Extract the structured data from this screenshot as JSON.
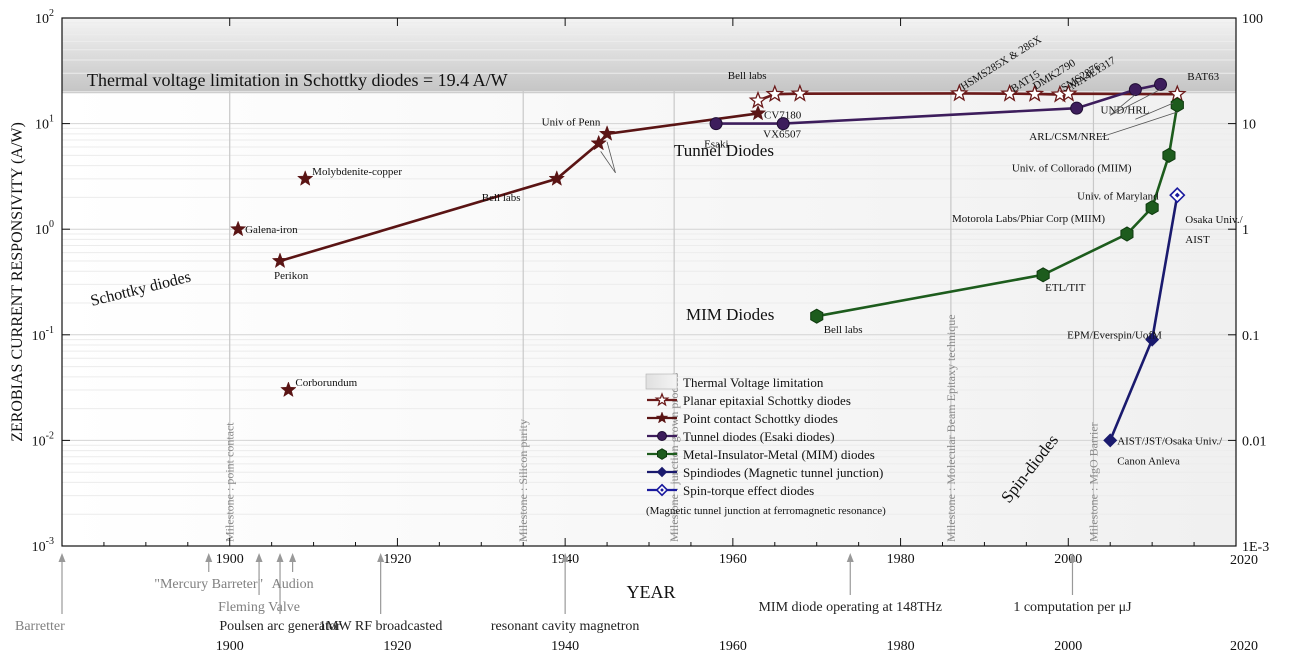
{
  "chart_data": {
    "type": "scatter",
    "ylabel": "ZEROBIAS CURRENT RESPONSIVITY (A/W)",
    "xlabel": "YEAR",
    "xlim": [
      1880,
      2020
    ],
    "ylim": [
      0.001,
      100
    ],
    "y_scale": "log",
    "x_ticks": [
      1900,
      1920,
      1940,
      1960,
      1980,
      2000,
      2020
    ],
    "y_ticks_left": [
      "10^-3",
      "10^-2",
      "10^-1",
      "10^0",
      "10^1",
      "10^2"
    ],
    "y_ticks_right": [
      "1E-3",
      "0.01",
      "0.1",
      "1",
      "10",
      "100"
    ],
    "thermal_band": {
      "from": 19.4,
      "to": 100,
      "label": "Thermal voltage limitation in Schottky diodes = 19.4 A/W"
    },
    "series": [
      {
        "name": "Planar epitaxial Schottky diodes",
        "color": "#6b1a1a",
        "marker": "star-open",
        "points": [
          {
            "x": 1963.0,
            "y": 16.5,
            "label": ""
          },
          {
            "x": 1965.0,
            "y": 19.0,
            "label": "Bell labs"
          },
          {
            "x": 1968.0,
            "y": 19.2,
            "label": ""
          },
          {
            "x": 1987.0,
            "y": 19.3,
            "label": "HSMS285X & 286X"
          },
          {
            "x": 1993.0,
            "y": 19.2,
            "label": "BAT15"
          },
          {
            "x": 1996.0,
            "y": 19.1,
            "label": "DMK2790"
          },
          {
            "x": 1999.0,
            "y": 18.8,
            "label": "SMS2876"
          },
          {
            "x": 2000.0,
            "y": 19.2,
            "label": "MA4E1317"
          },
          {
            "x": 2013.0,
            "y": 19.0,
            "label": "BAT63"
          }
        ]
      },
      {
        "name": "Point contact Schottky diodes",
        "color": "#5a1414",
        "marker": "star",
        "points": [
          {
            "x": 1906.0,
            "y": 0.5,
            "label": "Perikon"
          },
          {
            "x": 1939.0,
            "y": 3.0,
            "label": "Bell labs"
          },
          {
            "x": 1944.0,
            "y": 6.5,
            "label": "Univ of Penn"
          },
          {
            "x": 1945.0,
            "y": 8.0,
            "label": ""
          },
          {
            "x": 1963.0,
            "y": 12.5,
            "label": "CV7180"
          }
        ]
      },
      {
        "name": "",
        "color": "#5a1414",
        "marker": "star",
        "line": false,
        "points": [
          {
            "x": 1901.0,
            "y": 1.0,
            "label": "Galena-iron"
          },
          {
            "x": 1909.0,
            "y": 3.0,
            "label": "Molybdenite-copper"
          },
          {
            "x": 1907.0,
            "y": 0.03,
            "label": "Corborundum"
          }
        ]
      },
      {
        "name": "Tunnel diodes (Esaki diodes)",
        "color": "#3d1d5c",
        "marker": "circle",
        "points": [
          {
            "x": 1958.0,
            "y": 10.0,
            "label": "Esaki"
          },
          {
            "x": 1966.0,
            "y": 10.0,
            "label": "VX6507"
          },
          {
            "x": 2001.0,
            "y": 14.0,
            "label": ""
          },
          {
            "x": 2008.0,
            "y": 21.0,
            "label": ""
          },
          {
            "x": 2011.0,
            "y": 23.5,
            "label": "UND/HRL"
          }
        ]
      },
      {
        "name": "Metal-Insulator-Metal (MIM) diodes",
        "color": "#1d5c1d",
        "marker": "hexagon",
        "points": [
          {
            "x": 1970.0,
            "y": 0.15,
            "label": "Bell labs"
          },
          {
            "x": 1997.0,
            "y": 0.37,
            "label": "ETL/TIT"
          },
          {
            "x": 2007.0,
            "y": 0.9,
            "label": "Motorola Labs/Phiar Corp (MIIM)"
          },
          {
            "x": 2010.0,
            "y": 1.6,
            "label": "Univ. of Maryland"
          },
          {
            "x": 2012.0,
            "y": 5.0,
            "label": "Univ. of Collorado (MIIM)"
          },
          {
            "x": 2013.0,
            "y": 15.0,
            "label": "ARL/CSM/NREL"
          }
        ]
      },
      {
        "name": "Spindiodes (Magnetic tunnel junction)",
        "color": "#1a1a6e",
        "marker": "diamond",
        "points": [
          {
            "x": 2005.0,
            "y": 0.01,
            "label": "AIST/JST/Osaka Univ./ Canon Anleva"
          },
          {
            "x": 2010.0,
            "y": 0.09,
            "label": "EPM/Everspin/UofM"
          }
        ]
      },
      {
        "name": "Spin-torque effect diodes",
        "color": "#1a1a9e",
        "marker": "diamond-open",
        "points": [
          {
            "x": 2013.0,
            "y": 2.1,
            "label": "Osaka Univ./ AIST"
          }
        ]
      }
    ],
    "milestones": [
      {
        "x": 1900,
        "text": "Milestone : point contact"
      },
      {
        "x": 1935,
        "text": "Milestone : Silicon purity"
      },
      {
        "x": 1953,
        "text": "Milestone : junction grown process"
      },
      {
        "x": 1986,
        "text": "Milestone : Molecular Beam Epitaxy technique"
      },
      {
        "x": 2003,
        "text": "Milestone : MgO Barrier"
      }
    ],
    "region_labels": {
      "schottky": "Schottky diodes",
      "tunnel": "Tunnel Diodes",
      "mim": "MIM Diodes",
      "spin": "Spin-diodes"
    },
    "legend": {
      "title": "Thermal Voltage limitation",
      "note": "(Magnetic tunnel junction at ferromagnetic resonance)",
      "placement": "bottom-center"
    },
    "timeline": {
      "ticks": [
        1900,
        1920,
        1940,
        1960,
        1980,
        2000,
        2020
      ],
      "events": [
        {
          "x": 1880.0,
          "text": "Barretter",
          "color": "#808080",
          "row": 3
        },
        {
          "x": 1897.5,
          "text": "\"Mercury Barreter\"",
          "color": "#808080",
          "row": 1
        },
        {
          "x": 1903.5,
          "text": "Fleming Valve",
          "color": "#808080",
          "row": 2
        },
        {
          "x": 1906.0,
          "text": "Poulsen arc generator",
          "color": "#222222",
          "row": 3
        },
        {
          "x": 1907.5,
          "text": "Audion",
          "color": "#808080",
          "row": 1
        },
        {
          "x": 1918.0,
          "text": "1MW RF broadcasted",
          "color": "#222222",
          "row": 3
        },
        {
          "x": 1940.0,
          "text": "resonant cavity magnetron",
          "color": "#222222",
          "row": 3
        },
        {
          "x": 1974.0,
          "text": "MIM diode operating at 148THz",
          "color": "#222222",
          "row": 2
        },
        {
          "x": 2000.5,
          "text": "1 computation per μJ",
          "color": "#222222",
          "row": 2
        }
      ]
    }
  }
}
